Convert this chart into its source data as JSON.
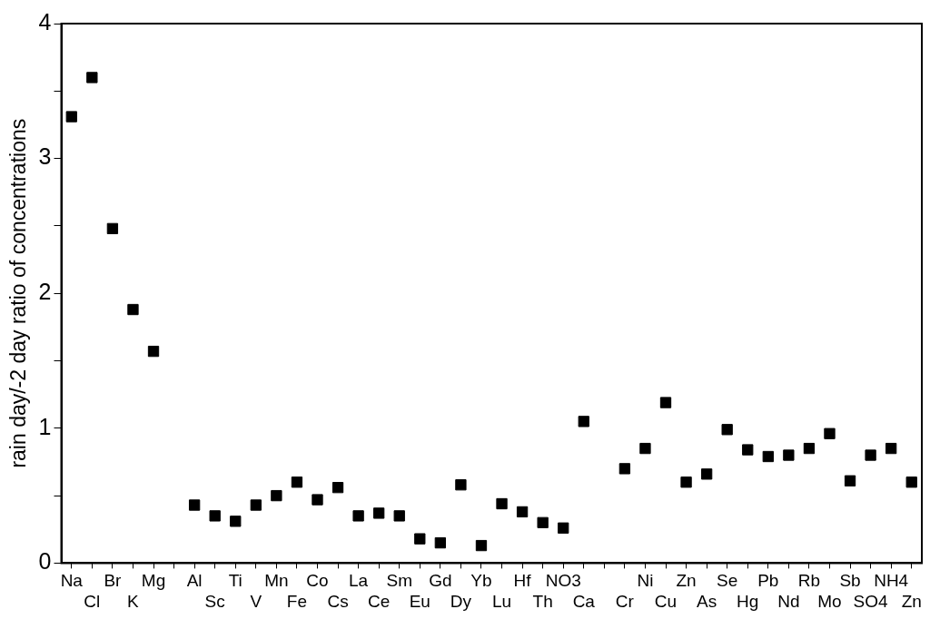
{
  "chart_data": {
    "type": "scatter",
    "ylabel": "rain day/-2 day ratio of concentrations",
    "categories": [
      "Na",
      "Cl",
      "Br",
      "K",
      "Mg",
      null,
      "Al",
      "Sc",
      "Ti",
      "V",
      "Mn",
      "Fe",
      "Co",
      "Cs",
      "La",
      "Ce",
      "Sm",
      "Eu",
      "Gd",
      "Dy",
      "Yb",
      "Lu",
      "Hf",
      "Th",
      "NO3",
      "Ca",
      null,
      "Cr",
      "Ni",
      "Cu",
      "Zn",
      "As",
      "Se",
      "Hg",
      "Pb",
      "Nd",
      "Rb",
      "Mo",
      "Sb",
      "SO4",
      "NH4",
      "Zn"
    ],
    "values": [
      3.31,
      3.6,
      2.48,
      1.88,
      1.57,
      null,
      0.43,
      0.35,
      0.31,
      0.43,
      0.5,
      0.6,
      0.47,
      0.56,
      0.35,
      0.37,
      0.35,
      0.18,
      0.15,
      0.58,
      0.13,
      0.44,
      0.38,
      0.3,
      0.26,
      1.05,
      null,
      0.7,
      0.85,
      1.19,
      0.6,
      0.66,
      0.99,
      0.84,
      0.79,
      0.8,
      0.85,
      0.96,
      0.61,
      0.8,
      0.85,
      0.6
    ],
    "color": "#000000",
    "marker": "square",
    "ylim": [
      0,
      4
    ],
    "yticks": [
      0,
      {
        "value": 0.5,
        "label": null
      },
      1,
      {
        "value": 1.5,
        "label": null
      },
      2,
      {
        "value": 2.5,
        "label": null
      },
      3,
      {
        "value": 3.5,
        "label": null
      },
      4
    ],
    "grid": false,
    "legend": false
  }
}
